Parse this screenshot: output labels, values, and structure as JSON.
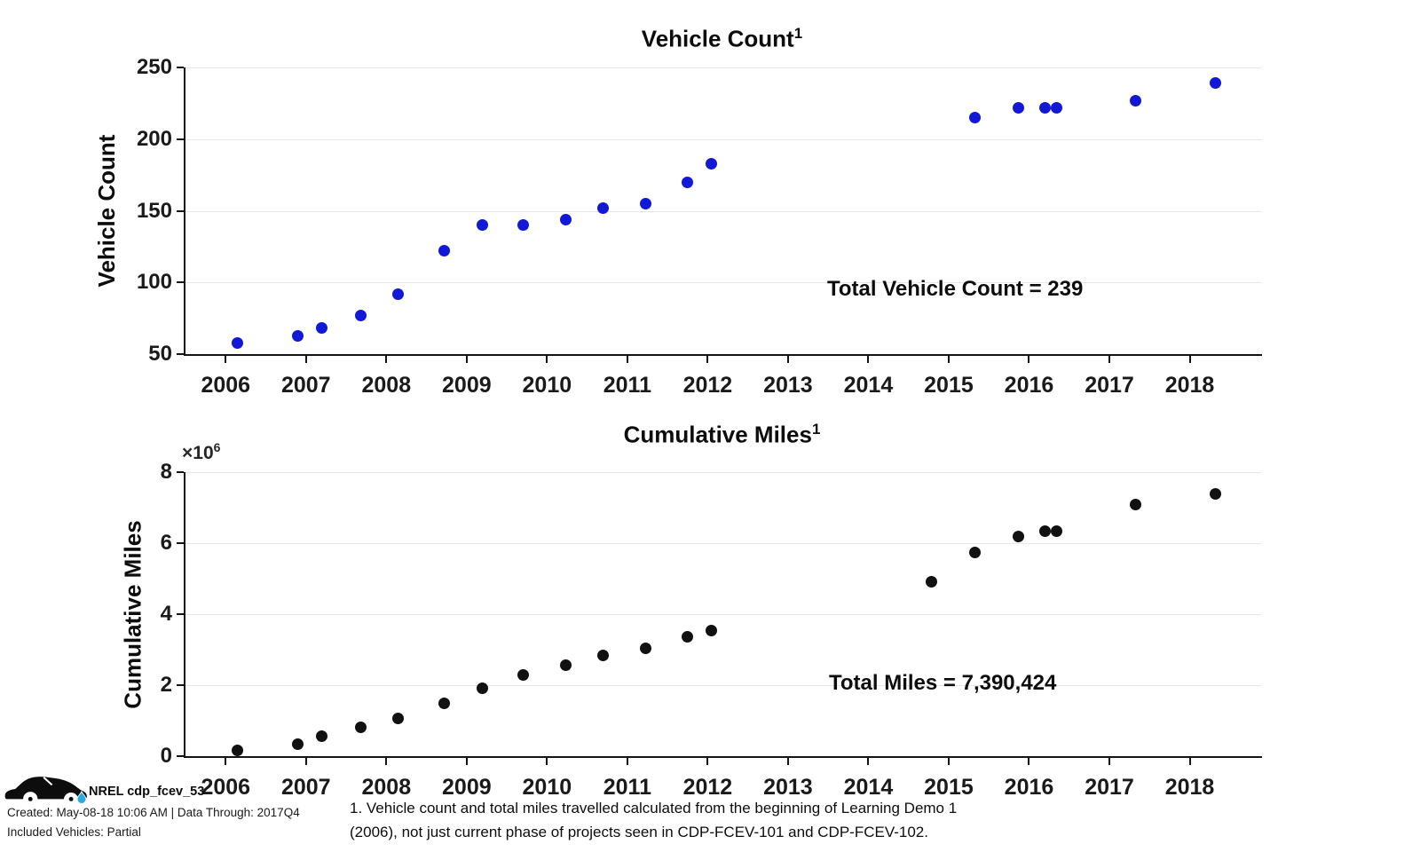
{
  "chart_data": [
    {
      "type": "scatter",
      "title": "Vehicle Count",
      "title_sup": "1",
      "ylabel": "Vehicle Count",
      "annotation": "Total Vehicle Count = 239",
      "dot_color": "#1118d6",
      "grid": "horizontal gridlines, light gray",
      "legend": "none",
      "xlim": [
        2005.5,
        2018.9
      ],
      "ylim": [
        50,
        250
      ],
      "xticks": [
        2006,
        2007,
        2008,
        2009,
        2010,
        2011,
        2012,
        2013,
        2014,
        2015,
        2016,
        2017,
        2018
      ],
      "yticks": [
        50,
        100,
        150,
        200,
        250
      ],
      "ytick_labels": [
        "50",
        "100",
        "150",
        "200",
        "250"
      ],
      "points": [
        [
          2006.15,
          58
        ],
        [
          2006.9,
          63
        ],
        [
          2007.2,
          68
        ],
        [
          2007.68,
          77
        ],
        [
          2008.15,
          92
        ],
        [
          2008.72,
          122
        ],
        [
          2009.2,
          140
        ],
        [
          2009.7,
          140
        ],
        [
          2010.23,
          144
        ],
        [
          2010.7,
          152
        ],
        [
          2011.23,
          155
        ],
        [
          2011.75,
          170
        ],
        [
          2012.05,
          183
        ],
        [
          2015.33,
          215
        ],
        [
          2015.87,
          222
        ],
        [
          2016.2,
          222
        ],
        [
          2016.34,
          222
        ],
        [
          2017.33,
          227
        ],
        [
          2018.32,
          239
        ]
      ]
    },
    {
      "type": "scatter",
      "title": "Cumulative Miles",
      "title_sup": "1",
      "ylabel": "Cumulative Miles",
      "y_multiplier_base": "×10",
      "y_multiplier_exp": "6",
      "y_units": "miles (values in millions)",
      "annotation": "Total Miles = 7,390,424",
      "dot_color": "#111111",
      "grid": "horizontal gridlines, light gray",
      "legend": "none",
      "xlim": [
        2005.5,
        2018.9
      ],
      "ylim": [
        0,
        8
      ],
      "xticks": [
        2006,
        2007,
        2008,
        2009,
        2010,
        2011,
        2012,
        2013,
        2014,
        2015,
        2016,
        2017,
        2018
      ],
      "yticks": [
        0,
        2,
        4,
        6,
        8
      ],
      "ytick_labels": [
        "0",
        "2",
        "4",
        "6",
        "8"
      ],
      "points": [
        [
          2006.15,
          0.16
        ],
        [
          2006.9,
          0.34
        ],
        [
          2007.2,
          0.56
        ],
        [
          2007.68,
          0.81
        ],
        [
          2008.15,
          1.06
        ],
        [
          2008.72,
          1.48
        ],
        [
          2009.2,
          1.91
        ],
        [
          2009.7,
          2.28
        ],
        [
          2010.23,
          2.56
        ],
        [
          2010.7,
          2.83
        ],
        [
          2011.23,
          3.03
        ],
        [
          2011.75,
          3.36
        ],
        [
          2012.05,
          3.53
        ],
        [
          2014.78,
          4.92
        ],
        [
          2015.33,
          5.73
        ],
        [
          2015.87,
          6.2
        ],
        [
          2016.2,
          6.34
        ],
        [
          2016.34,
          6.34
        ],
        [
          2017.33,
          7.08
        ],
        [
          2018.32,
          7.39
        ]
      ]
    }
  ],
  "footer": {
    "logo": "car-icon",
    "droplet_color": "#29abe2",
    "brand": "NREL cdp_fcev_53",
    "created_line": "Created: May-08-18 10:06 AM | Data Through: 2017Q4",
    "included_line": "Included Vehicles: Partial"
  },
  "footnote": {
    "line1": "1. Vehicle count and total miles travelled calculated from the beginning of Learning Demo 1",
    "line2": "(2006), not just current phase of projects seen in CDP-FCEV-101 and CDP-FCEV-102."
  }
}
